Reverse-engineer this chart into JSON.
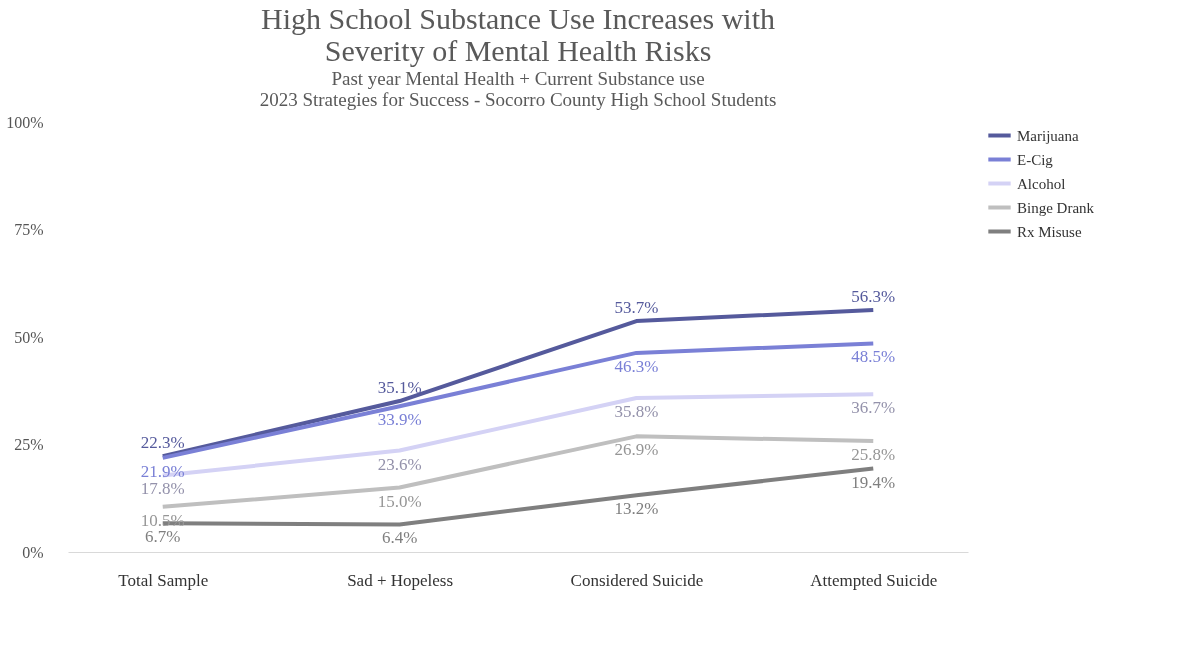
{
  "chart_data": {
    "type": "line",
    "title": "High School Substance Use Increases with Severity of Mental Health Risks",
    "subtitle": "Past year Mental Health + Current Substance use\n2023 Strategies for Success - Socorro County High School Students",
    "categories": [
      "Total Sample",
      "Sad + Hopeless",
      "Considered Suicide",
      "Attempted Suicide"
    ],
    "series": [
      {
        "name": "Marijuana",
        "color": "#555a9c",
        "values": [
          22.3,
          35.1,
          53.7,
          56.3
        ],
        "value_labels": [
          "22.3%",
          "35.1%",
          "53.7%",
          "56.3%"
        ]
      },
      {
        "name": "E-Cig",
        "color": "#7a80d6",
        "values": [
          21.9,
          33.9,
          46.3,
          48.5
        ],
        "value_labels": [
          "21.9%",
          "33.9%",
          "46.3%",
          "48.5%"
        ]
      },
      {
        "name": "Alcohol",
        "color": "#d4d2f5",
        "values": [
          17.8,
          23.6,
          35.8,
          36.7
        ],
        "value_labels": [
          "17.8%",
          "23.6%",
          "35.8%",
          "36.7%"
        ]
      },
      {
        "name": "Binge Drank",
        "color": "#bfbfbf",
        "values": [
          10.5,
          15.0,
          26.9,
          25.8
        ],
        "value_labels": [
          "10.5%",
          "15.0%",
          "26.9%",
          "25.8%"
        ]
      },
      {
        "name": "Rx Misuse",
        "color": "#7f7f7f",
        "values": [
          6.7,
          6.4,
          13.2,
          19.4
        ],
        "value_labels": [
          "6.7%",
          "6.4%",
          "13.2%",
          "19.4%"
        ]
      }
    ],
    "ylim": [
      0,
      100
    ],
    "yticks": [
      {
        "value": 0,
        "label": "0%"
      },
      {
        "value": 25,
        "label": "25%"
      },
      {
        "value": 50,
        "label": "50%"
      },
      {
        "value": 75,
        "label": "75%"
      },
      {
        "value": 100,
        "label": "100%"
      }
    ],
    "grid": false,
    "legend": "right",
    "marker": "none",
    "line_style": "solid"
  }
}
